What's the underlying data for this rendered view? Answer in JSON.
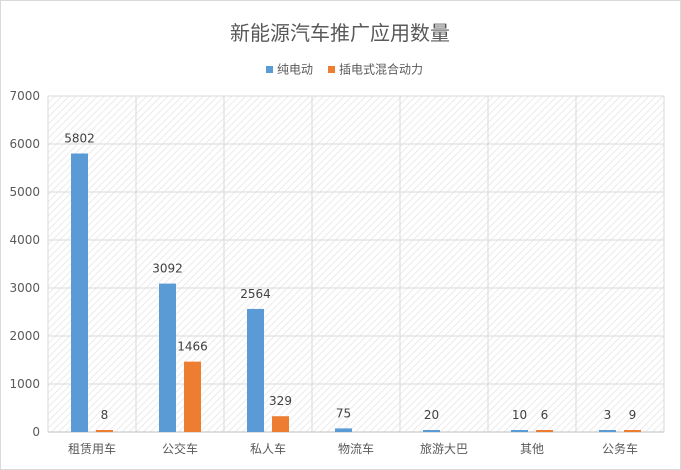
{
  "chart_data": {
    "type": "bar",
    "title": "新能源汽车推广应用数量",
    "xlabel": "",
    "ylabel": "",
    "ylim": [
      0,
      7000
    ],
    "yticks": [
      0,
      1000,
      2000,
      3000,
      4000,
      5000,
      6000,
      7000
    ],
    "grid": true,
    "legend_position": "top",
    "categories": [
      "租赁用车",
      "公交车",
      "私人车",
      "物流车",
      "旅游大巴",
      "其他",
      "公务车"
    ],
    "series": [
      {
        "name": "纯电动",
        "color": "#5b9bd5",
        "values": [
          5802,
          3092,
          2564,
          75,
          20,
          10,
          3
        ]
      },
      {
        "name": "插电式混合动力",
        "color": "#ed7d31",
        "values": [
          8,
          1466,
          329,
          null,
          null,
          6,
          9
        ]
      }
    ]
  }
}
